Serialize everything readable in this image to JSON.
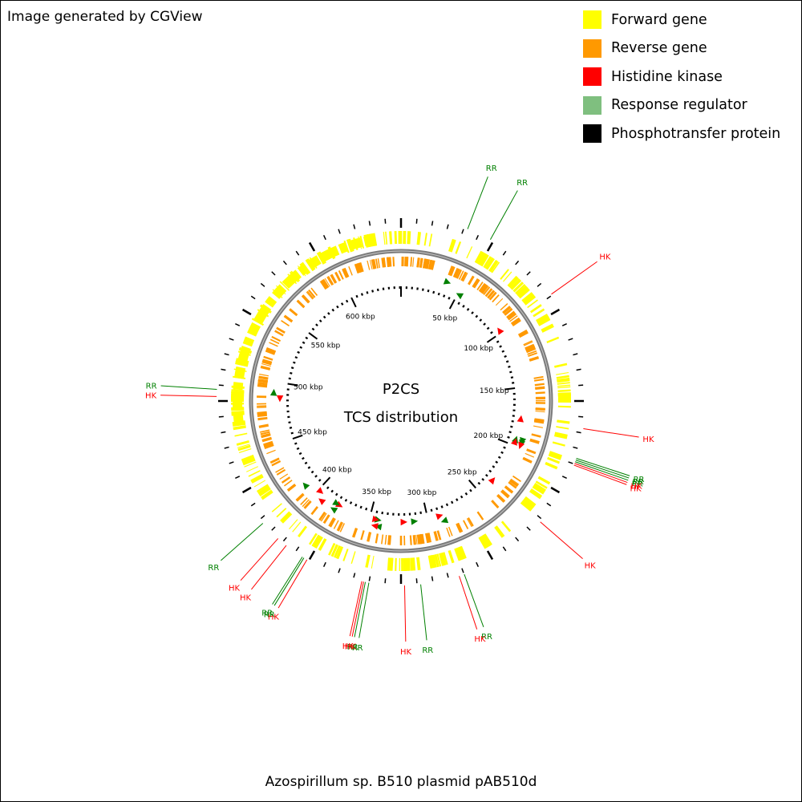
{
  "header": {
    "credit": "Image generated by CGView"
  },
  "footer": {
    "caption": "Azospirillum sp. B510 plasmid pAB510d"
  },
  "center": {
    "line1": "P2CS",
    "line2": "TCS distribution"
  },
  "legend": [
    {
      "label": "Forward gene",
      "color": "#ffff00"
    },
    {
      "label": "Reverse gene",
      "color": "#ff9900"
    },
    {
      "label": "Histidine kinase",
      "color": "#ff0000"
    },
    {
      "label": "Response regulator",
      "color": "#7fbf7f"
    },
    {
      "label": "Phosphotransfer protein",
      "color": "#000000"
    }
  ],
  "genome": {
    "length_kbp": 646,
    "tick_step_kbp": 50
  },
  "ticks": [
    "50 kbp",
    "100 kbp",
    "150 kbp",
    "200 kbp",
    "250 kbp",
    "300 kbp",
    "350 kbp",
    "400 kbp",
    "450 kbp",
    "500 kbp",
    "550 kbp",
    "600 kbp"
  ],
  "features": [
    {
      "type": "RR",
      "label": "RR",
      "pos_kbp": 38,
      "strand": "forward"
    },
    {
      "type": "RR",
      "label": "RR",
      "pos_kbp": 52,
      "strand": "reverse"
    },
    {
      "type": "HK",
      "label": "HK",
      "pos_kbp": 98,
      "strand": "reverse"
    },
    {
      "type": "HK",
      "label": "HK",
      "pos_kbp": 177,
      "strand": "reverse"
    },
    {
      "type": "RR",
      "label": "RR",
      "pos_kbp": 194,
      "strand": "forward"
    },
    {
      "type": "RR",
      "label": "RR",
      "pos_kbp": 195,
      "strand": "reverse"
    },
    {
      "type": "RR",
      "label": "RR",
      "pos_kbp": 196,
      "strand": "forward"
    },
    {
      "type": "HK",
      "label": "HK",
      "pos_kbp": 197,
      "strand": "reverse"
    },
    {
      "type": "HK",
      "label": "HK",
      "pos_kbp": 198,
      "strand": "forward"
    },
    {
      "type": "HK",
      "label": "HK",
      "pos_kbp": 235,
      "strand": "reverse"
    },
    {
      "type": "RR",
      "label": "RR",
      "pos_kbp": 287,
      "strand": "forward"
    },
    {
      "type": "HK",
      "label": "HK",
      "pos_kbp": 290,
      "strand": "reverse"
    },
    {
      "type": "RR",
      "label": "RR",
      "pos_kbp": 312,
      "strand": "reverse"
    },
    {
      "type": "HK",
      "label": "HK",
      "pos_kbp": 321,
      "strand": "reverse"
    },
    {
      "type": "RR",
      "label": "RR",
      "pos_kbp": 341,
      "strand": "forward"
    },
    {
      "type": "RR",
      "label": "RR",
      "pos_kbp": 343,
      "strand": "reverse"
    },
    {
      "type": "HK",
      "label": "HK",
      "pos_kbp": 344,
      "strand": "forward"
    },
    {
      "type": "HK",
      "label": "HK",
      "pos_kbp": 345,
      "strand": "reverse"
    },
    {
      "type": "HK",
      "label": "HK",
      "pos_kbp": 378,
      "strand": "reverse"
    },
    {
      "type": "RR",
      "label": "RR",
      "pos_kbp": 380,
      "strand": "forward"
    },
    {
      "type": "RR",
      "label": "RR",
      "pos_kbp": 381,
      "strand": "reverse"
    },
    {
      "type": "HK",
      "label": "HK",
      "pos_kbp": 392,
      "strand": "forward"
    },
    {
      "type": "HK",
      "label": "HK",
      "pos_kbp": 398,
      "strand": "reverse"
    },
    {
      "type": "RR",
      "label": "RR",
      "pos_kbp": 410,
      "strand": "forward"
    },
    {
      "type": "HK",
      "label": "HK",
      "pos_kbp": 487,
      "strand": "reverse"
    },
    {
      "type": "RR",
      "label": "RR",
      "pos_kbp": 491,
      "strand": "forward"
    }
  ]
}
